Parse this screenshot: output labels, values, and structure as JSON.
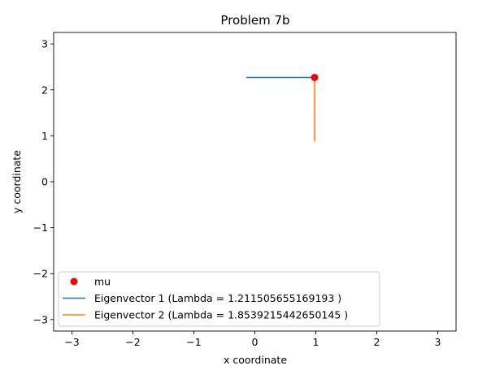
{
  "chart_data": {
    "type": "line",
    "title": "Problem 7b",
    "xlabel": "x coordinate",
    "ylabel": "y coordinate",
    "xlim": [
      -3.3,
      3.3
    ],
    "ylim": [
      -3.25,
      3.25
    ],
    "xticks": [
      -3,
      -2,
      -1,
      0,
      1,
      2,
      3
    ],
    "yticks": [
      -3,
      -2,
      -1,
      0,
      1,
      2,
      3
    ],
    "tick_labels_x": [
      "−3",
      "−2",
      "−1",
      "0",
      "1",
      "2",
      "3"
    ],
    "tick_labels_y": [
      "−3",
      "−2",
      "−1",
      "0",
      "1",
      "2",
      "3"
    ],
    "grid": false,
    "legend_position": "lower-left",
    "series": [
      {
        "name": "mu",
        "kind": "point",
        "color": "#ff0000",
        "x": [
          0.98
        ],
        "y": [
          2.27
        ]
      },
      {
        "name": "Eigenvector 1 (Lambda = 1.211505655169193 )",
        "kind": "line",
        "color": "#1f77b4",
        "x": [
          -0.14,
          0.98
        ],
        "y": [
          2.27,
          2.27
        ]
      },
      {
        "name": "Eigenvector 2 (Lambda = 1.8539215442650145 )",
        "kind": "line",
        "color": "#ff7f0e",
        "x": [
          0.98,
          0.98
        ],
        "y": [
          2.27,
          0.88
        ]
      }
    ]
  }
}
